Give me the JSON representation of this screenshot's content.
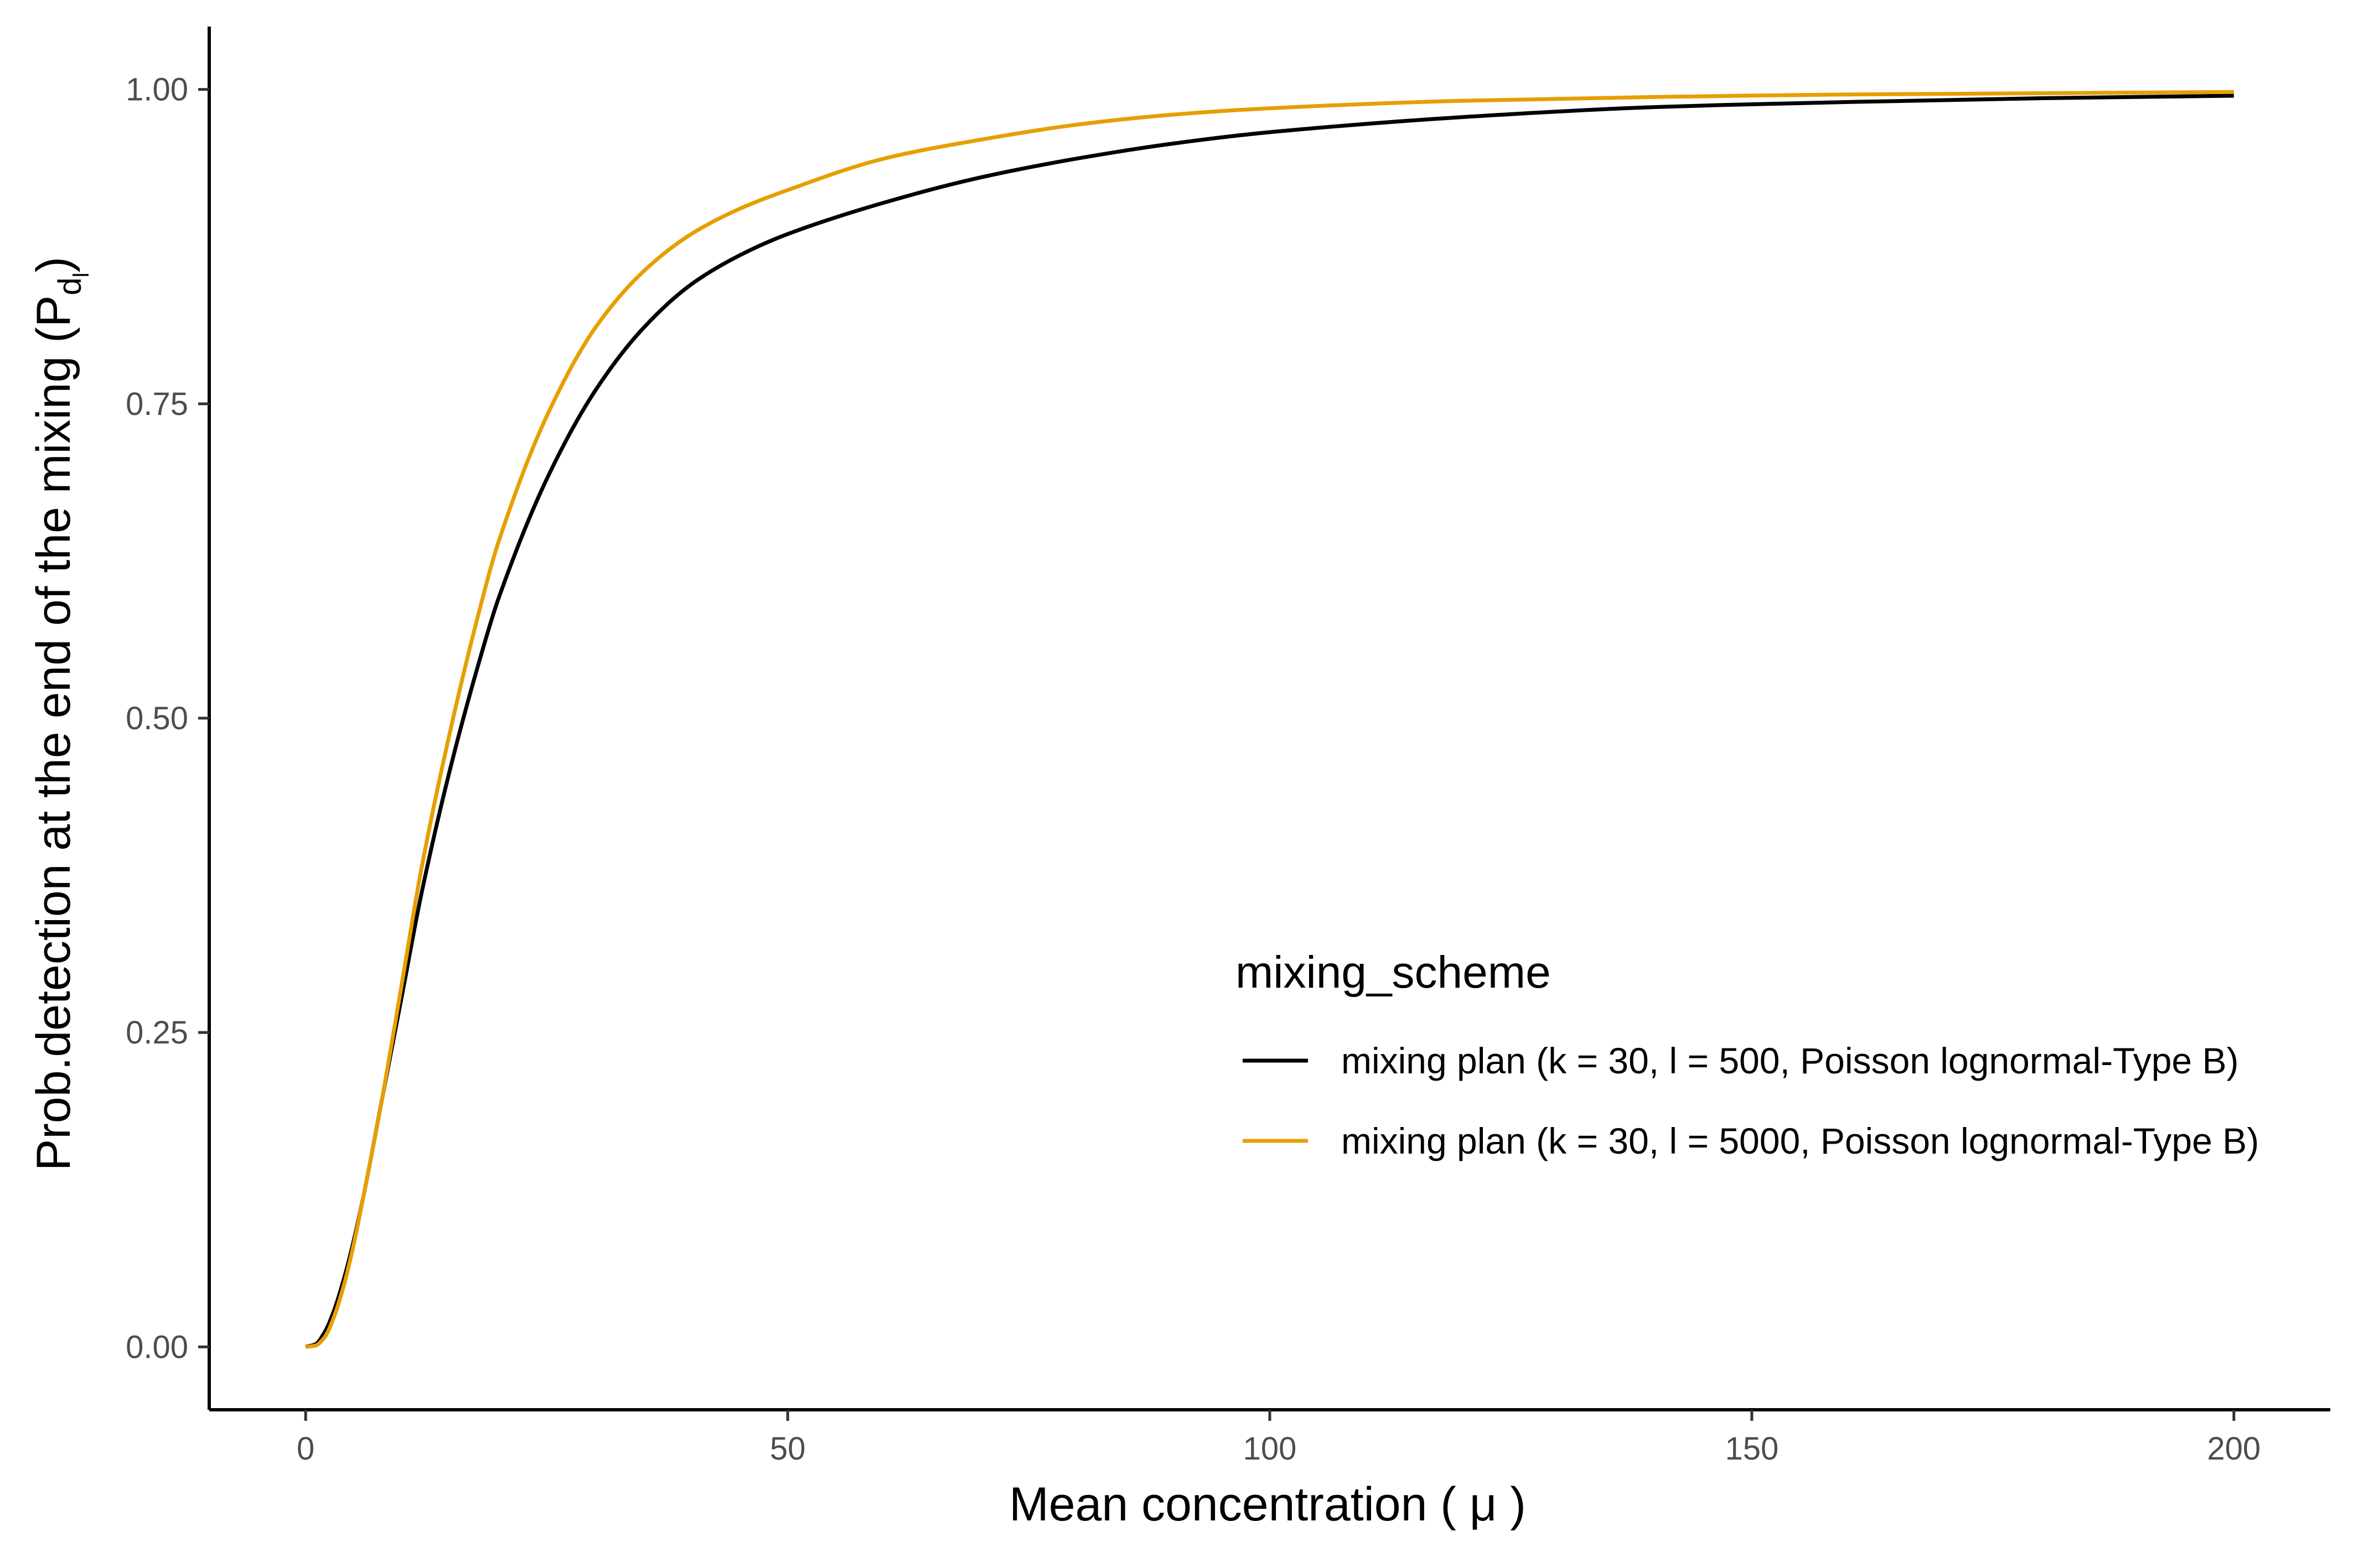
{
  "chart_data": {
    "type": "line",
    "xlabel": "Mean concentration ( μ )",
    "ylabel_main": "Prob.detection at the end of the mixing (P",
    "ylabel_sub": "d",
    "ylabel_subsub": "l",
    "ylabel_close": ")",
    "xlim": [
      -10,
      210
    ],
    "ylim": [
      -0.05,
      1.05
    ],
    "x_ticks": [
      0,
      50,
      100,
      150,
      200
    ],
    "x_tick_labels": [
      "0",
      "50",
      "100",
      "150",
      "200"
    ],
    "y_ticks": [
      0,
      0.25,
      0.5,
      0.75,
      1.0
    ],
    "y_tick_labels": [
      "0.00",
      "0.25",
      "0.50",
      "0.75",
      "1.00"
    ],
    "grid": false,
    "legend": {
      "title": "mixing_scheme",
      "position": "right-center"
    },
    "series": [
      {
        "name": "mixing plan (k = 30, l = 500, Poisson lognormal-Type B)",
        "color": "#000000",
        "x": [
          0,
          1,
          2,
          3,
          4,
          5,
          6,
          8,
          10,
          12,
          15,
          18,
          20,
          25,
          30,
          35,
          40,
          45,
          50,
          60,
          70,
          80,
          90,
          100,
          120,
          140,
          160,
          180,
          200
        ],
        "y": [
          0,
          0.002,
          0.012,
          0.03,
          0.055,
          0.085,
          0.12,
          0.2,
          0.28,
          0.36,
          0.46,
          0.545,
          0.595,
          0.69,
          0.76,
          0.81,
          0.845,
          0.868,
          0.885,
          0.91,
          0.93,
          0.945,
          0.957,
          0.966,
          0.978,
          0.986,
          0.99,
          0.993,
          0.995
        ]
      },
      {
        "name": "mixing plan (k = 30, l = 5000, Poisson lognormal-Type B)",
        "color": "#E69F00",
        "x": [
          0,
          1,
          2,
          3,
          4,
          5,
          6,
          8,
          10,
          12,
          15,
          18,
          20,
          25,
          30,
          35,
          40,
          45,
          50,
          60,
          70,
          80,
          90,
          100,
          120,
          140,
          160,
          180,
          200
        ],
        "y": [
          0,
          0.001,
          0.008,
          0.025,
          0.05,
          0.082,
          0.12,
          0.2,
          0.29,
          0.38,
          0.49,
          0.585,
          0.64,
          0.74,
          0.81,
          0.855,
          0.885,
          0.905,
          0.92,
          0.945,
          0.96,
          0.972,
          0.98,
          0.985,
          0.991,
          0.994,
          0.996,
          0.997,
          0.998
        ]
      }
    ]
  }
}
